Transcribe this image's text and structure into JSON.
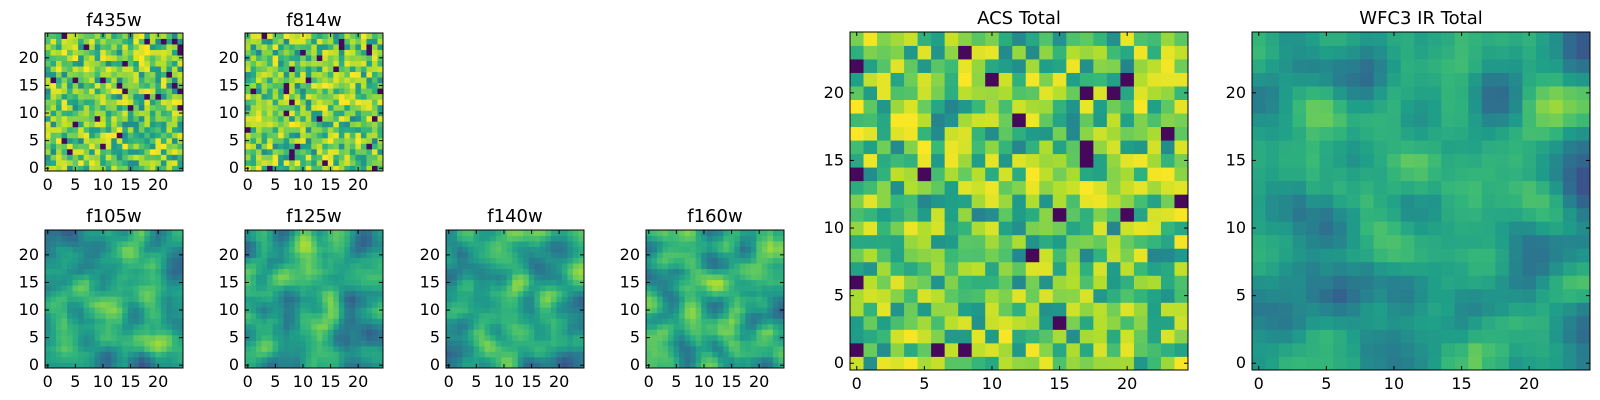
{
  "chart_data": [
    {
      "type": "heatmap",
      "title": "f435w",
      "x_ticks": [
        "0",
        "5",
        "10",
        "15",
        "20"
      ],
      "y_ticks": [
        "0",
        "5",
        "10",
        "15",
        "20"
      ],
      "xlim": [
        -0.5,
        24.5
      ],
      "ylim": [
        -0.5,
        24.5
      ],
      "grid": false,
      "colormap": "viridis",
      "style": "noise"
    },
    {
      "type": "heatmap",
      "title": "f814w",
      "x_ticks": [
        "0",
        "5",
        "10",
        "15",
        "20"
      ],
      "y_ticks": [
        "0",
        "5",
        "10",
        "15",
        "20"
      ],
      "xlim": [
        -0.5,
        24.5
      ],
      "ylim": [
        -0.5,
        24.5
      ],
      "grid": false,
      "colormap": "viridis",
      "style": "noise"
    },
    {
      "type": "heatmap",
      "title": "f105w",
      "x_ticks": [
        "0",
        "5",
        "10",
        "15",
        "20"
      ],
      "y_ticks": [
        "0",
        "5",
        "10",
        "15",
        "20"
      ],
      "xlim": [
        -0.5,
        24.5
      ],
      "ylim": [
        -0.5,
        24.5
      ],
      "grid": false,
      "colormap": "viridis",
      "style": "smooth"
    },
    {
      "type": "heatmap",
      "title": "f125w",
      "x_ticks": [
        "0",
        "5",
        "10",
        "15",
        "20"
      ],
      "y_ticks": [
        "0",
        "5",
        "10",
        "15",
        "20"
      ],
      "xlim": [
        -0.5,
        24.5
      ],
      "ylim": [
        -0.5,
        24.5
      ],
      "grid": false,
      "colormap": "viridis",
      "style": "smooth"
    },
    {
      "type": "heatmap",
      "title": "f140w",
      "x_ticks": [
        "0",
        "5",
        "10",
        "15",
        "20"
      ],
      "y_ticks": [
        "0",
        "5",
        "10",
        "15",
        "20"
      ],
      "xlim": [
        -0.5,
        24.5
      ],
      "ylim": [
        -0.5,
        24.5
      ],
      "grid": false,
      "colormap": "viridis",
      "style": "smooth"
    },
    {
      "type": "heatmap",
      "title": "f160w",
      "x_ticks": [
        "0",
        "5",
        "10",
        "15",
        "20"
      ],
      "y_ticks": [
        "0",
        "5",
        "10",
        "15",
        "20"
      ],
      "xlim": [
        -0.5,
        24.5
      ],
      "ylim": [
        -0.5,
        24.5
      ],
      "grid": false,
      "colormap": "viridis",
      "style": "smooth"
    },
    {
      "type": "heatmap",
      "title": "ACS Total",
      "x_ticks": [
        "0",
        "5",
        "10",
        "15",
        "20"
      ],
      "y_ticks": [
        "0",
        "5",
        "10",
        "15",
        "20"
      ],
      "xlim": [
        -0.5,
        24.5
      ],
      "ylim": [
        -0.5,
        24.5
      ],
      "grid": false,
      "colormap": "viridis",
      "style": "noise"
    },
    {
      "type": "heatmap",
      "title": "WFC3 IR Total",
      "x_ticks": [
        "0",
        "5",
        "10",
        "15",
        "20"
      ],
      "y_ticks": [
        "0",
        "5",
        "10",
        "15",
        "20"
      ],
      "xlim": [
        -0.5,
        24.5
      ],
      "ylim": [
        -0.5,
        24.5
      ],
      "grid": false,
      "colormap": "viridis",
      "style": "smooth"
    }
  ]
}
